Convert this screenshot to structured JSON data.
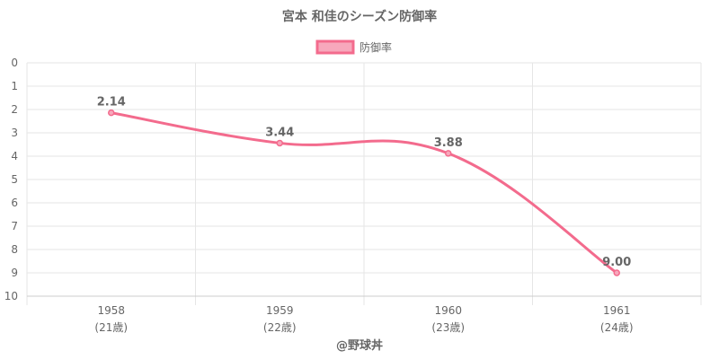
{
  "chart_data": {
    "type": "line",
    "title": "宮本 和佳のシーズン防御率",
    "categories": [
      "1958",
      "1959",
      "1960",
      "1961"
    ],
    "category_sublabels": [
      "(21歳)",
      "(22歳)",
      "(23歳)",
      "(24歳)"
    ],
    "series": [
      {
        "name": "防御率",
        "values": [
          2.14,
          3.44,
          3.88,
          9.0
        ],
        "color": "#f36b8d",
        "fill": "#f7a8bc"
      }
    ],
    "y_axis": {
      "reversed": true,
      "ylim": [
        0,
        10
      ],
      "ticks": [
        "0",
        "1",
        "2",
        "3",
        "4",
        "5",
        "6",
        "7",
        "8",
        "9",
        "10"
      ]
    },
    "data_labels": [
      "2.14",
      "3.44",
      "3.88",
      "9.00"
    ],
    "legend": "top-center",
    "grid": true
  },
  "footer": "@野球丼"
}
